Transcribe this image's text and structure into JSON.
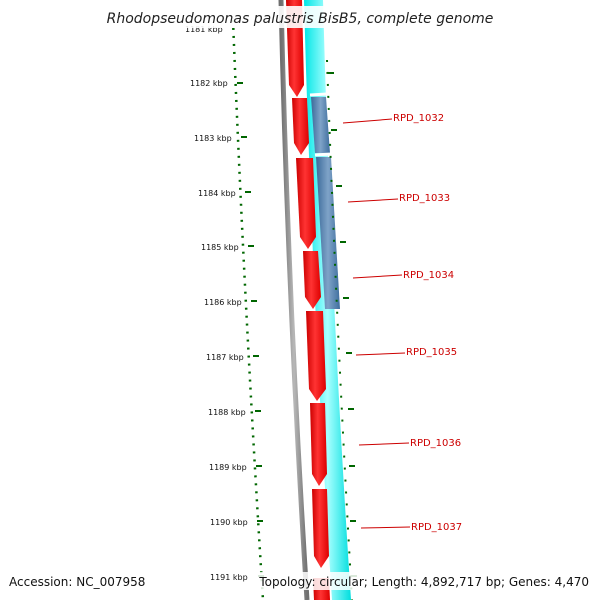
{
  "title": "Rhodopseudomonas palustris BisB5, complete genome",
  "footer": {
    "accession": "Accession: NC_007958",
    "topology": "Topology: circular; Length: 4,892,717 bp; Genes: 4,470"
  },
  "ruler": {
    "top_partial_label": "1181 kbp",
    "labels": [
      "1182 kbp",
      "1183 kbp",
      "1184 kbp",
      "1185 kbp",
      "1186 kbp",
      "1187 kbp",
      "1188 kbp",
      "1189 kbp",
      "1190 kbp",
      "1191 kbp"
    ]
  },
  "genes": [
    "RPD_1032",
    "RPD_1033",
    "RPD_1034",
    "RPD_1035",
    "RPD_1036",
    "RPD_1037"
  ],
  "colors": {
    "forward_cds": "#ff0000",
    "reverse_track": "#00ffff",
    "highlight_track": "#4f7fb0",
    "backbone": "#808080",
    "ruler_ticks": "#006600",
    "gene_label": "#cc0000"
  }
}
